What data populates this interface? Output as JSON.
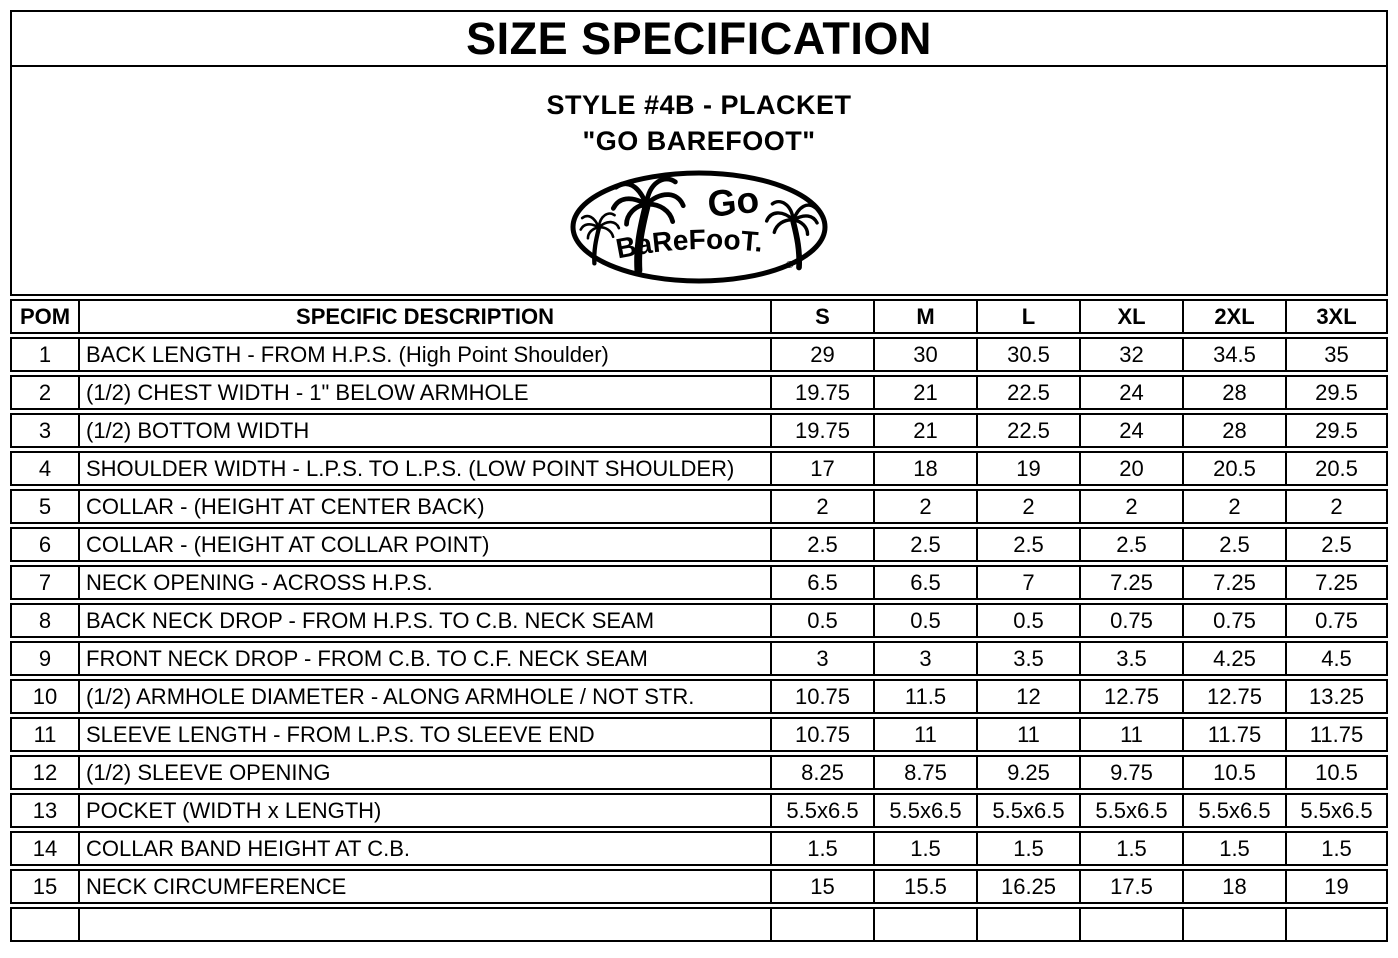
{
  "page": {
    "title": "SIZE SPECIFICATION",
    "style_line1": "STYLE #4B - PLACKET",
    "style_line2": "\"GO BAREFOOT\""
  },
  "logo": {
    "name": "go-barefoot-brand-logo",
    "text_top": "Go",
    "text_bottom": "BaReFooT.",
    "registered_mark": "®",
    "color": "#000000"
  },
  "table": {
    "headers": [
      "POM",
      "SPECIFIC DESCRIPTION",
      "S",
      "M",
      "L",
      "XL",
      "2XL",
      "3XL"
    ],
    "rows": [
      {
        "pom": "1",
        "description": "BACK LENGTH - FROM H.P.S. (High Point Shoulder)",
        "values": [
          "29",
          "30",
          "30.5",
          "32",
          "34.5",
          "35"
        ]
      },
      {
        "pom": "2",
        "description": "(1/2) CHEST WIDTH - 1\" BELOW ARMHOLE",
        "values": [
          "19.75",
          "21",
          "22.5",
          "24",
          "28",
          "29.5"
        ]
      },
      {
        "pom": "3",
        "description": "(1/2) BOTTOM WIDTH",
        "values": [
          "19.75",
          "21",
          "22.5",
          "24",
          "28",
          "29.5"
        ]
      },
      {
        "pom": "4",
        "description": "SHOULDER WIDTH - L.P.S. TO L.P.S. (LOW POINT SHOULDER)",
        "values": [
          "17",
          "18",
          "19",
          "20",
          "20.5",
          "20.5"
        ]
      },
      {
        "pom": "5",
        "description": "COLLAR - (HEIGHT AT CENTER BACK)",
        "values": [
          "2",
          "2",
          "2",
          "2",
          "2",
          "2"
        ]
      },
      {
        "pom": "6",
        "description": "COLLAR - (HEIGHT AT COLLAR POINT)",
        "values": [
          "2.5",
          "2.5",
          "2.5",
          "2.5",
          "2.5",
          "2.5"
        ]
      },
      {
        "pom": "7",
        "description": "NECK OPENING - ACROSS H.P.S.",
        "values": [
          "6.5",
          "6.5",
          "7",
          "7.25",
          "7.25",
          "7.25"
        ]
      },
      {
        "pom": "8",
        "description": "BACK NECK DROP - FROM H.P.S. TO C.B. NECK SEAM",
        "values": [
          "0.5",
          "0.5",
          "0.5",
          "0.75",
          "0.75",
          "0.75"
        ]
      },
      {
        "pom": "9",
        "description": "FRONT NECK DROP - FROM C.B. TO C.F. NECK SEAM",
        "values": [
          "3",
          "3",
          "3.5",
          "3.5",
          "4.25",
          "4.5"
        ]
      },
      {
        "pom": "10",
        "description": "(1/2) ARMHOLE DIAMETER - ALONG ARMHOLE / NOT STR.",
        "values": [
          "10.75",
          "11.5",
          "12",
          "12.75",
          "12.75",
          "13.25"
        ]
      },
      {
        "pom": "11",
        "description": "SLEEVE LENGTH - FROM L.P.S. TO SLEEVE END",
        "values": [
          "10.75",
          "11",
          "11",
          "11",
          "11.75",
          "11.75"
        ]
      },
      {
        "pom": "12",
        "description": "(1/2) SLEEVE OPENING",
        "values": [
          "8.25",
          "8.75",
          "9.25",
          "9.75",
          "10.5",
          "10.5"
        ]
      },
      {
        "pom": "13",
        "description": "POCKET (WIDTH x LENGTH)",
        "values": [
          "5.5x6.5",
          "5.5x6.5",
          "5.5x6.5",
          "5.5x6.5",
          "5.5x6.5",
          "5.5x6.5"
        ]
      },
      {
        "pom": "14",
        "description": "COLLAR BAND HEIGHT AT C.B.",
        "values": [
          "1.5",
          "1.5",
          "1.5",
          "1.5",
          "1.5",
          "1.5"
        ]
      },
      {
        "pom": "15",
        "description": "NECK CIRCUMFERENCE",
        "values": [
          "15",
          "15.5",
          "16.25",
          "17.5",
          "18",
          "19"
        ]
      },
      {
        "pom": "",
        "description": "",
        "values": [
          "",
          "",
          "",
          "",
          "",
          ""
        ]
      }
    ]
  }
}
